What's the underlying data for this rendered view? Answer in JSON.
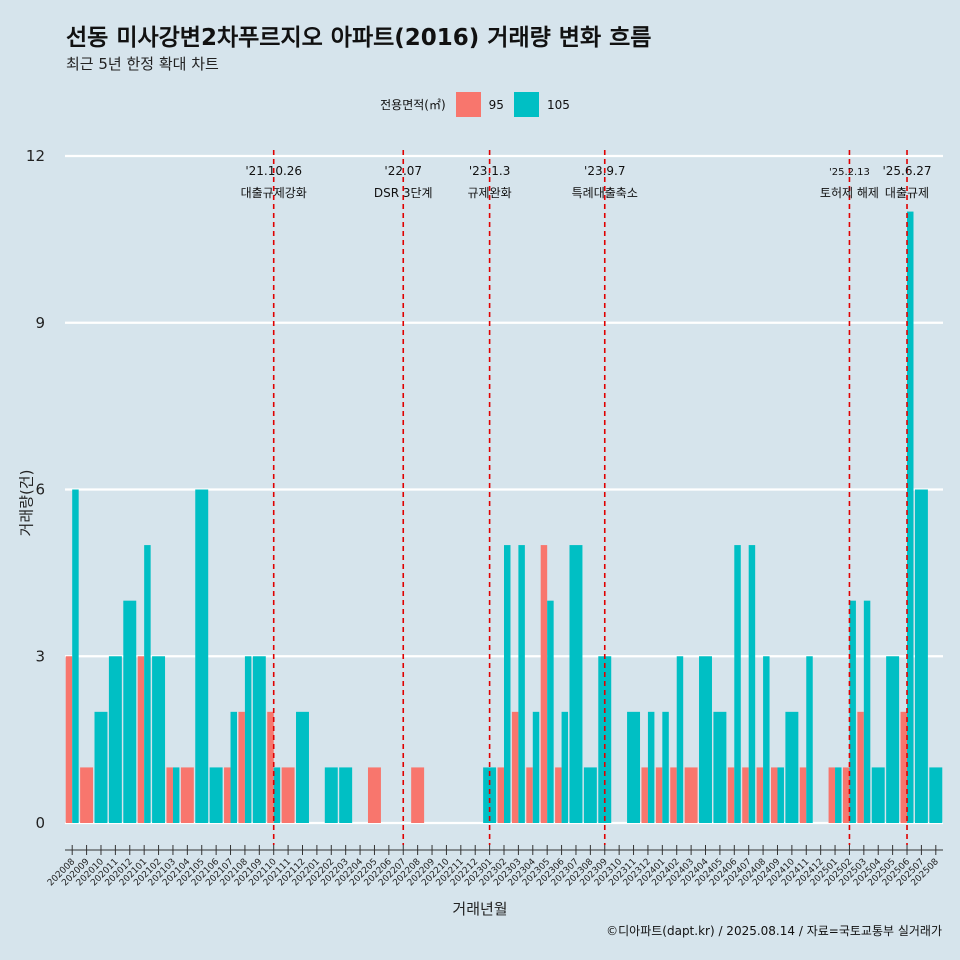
{
  "title": "선동 미사강변2차푸르지오 아파트(2016) 거래량 변화 흐름",
  "subtitle": "최근 5년 한정 확대 차트",
  "caption": "©디아파트(dapt.kr) / 2025.08.14 / 자료=국토교통부 실거래가",
  "legend": {
    "title": "전용면적(㎡)",
    "items": [
      {
        "label": "95",
        "color": "#f8766d"
      },
      {
        "label": "105",
        "color": "#00bfc4"
      }
    ]
  },
  "chart_data": {
    "type": "bar",
    "xlabel": "거래년월",
    "ylabel": "거래량(건)",
    "ylim": [
      0,
      12
    ],
    "yticks": [
      0,
      3,
      6,
      9,
      12
    ],
    "categories": [
      "202008",
      "202009",
      "202010",
      "202011",
      "202012",
      "202101",
      "202102",
      "202103",
      "202104",
      "202105",
      "202106",
      "202107",
      "202108",
      "202109",
      "202110",
      "202111",
      "202112",
      "202201",
      "202202",
      "202203",
      "202204",
      "202205",
      "202206",
      "202207",
      "202208",
      "202209",
      "202210",
      "202211",
      "202212",
      "202301",
      "202302",
      "202303",
      "202304",
      "202305",
      "202306",
      "202307",
      "202308",
      "202309",
      "202310",
      "202311",
      "202312",
      "202401",
      "202402",
      "202403",
      "202404",
      "202405",
      "202406",
      "202407",
      "202408",
      "202409",
      "202410",
      "202411",
      "202412",
      "202501",
      "202502",
      "202503",
      "202504",
      "202505",
      "202506",
      "202507",
      "202508"
    ],
    "series": [
      {
        "name": "95",
        "color": "#f8766d",
        "values": [
          3,
          1,
          0,
          0,
          0,
          3,
          0,
          1,
          1,
          0,
          0,
          1,
          2,
          0,
          2,
          1,
          0,
          0,
          0,
          0,
          0,
          1,
          0,
          0,
          1,
          0,
          0,
          0,
          0,
          0,
          1,
          2,
          1,
          5,
          1,
          0,
          0,
          0,
          0,
          0,
          1,
          1,
          1,
          1,
          0,
          0,
          1,
          1,
          1,
          1,
          0,
          1,
          0,
          1,
          1,
          2,
          0,
          0,
          2,
          0,
          0
        ]
      },
      {
        "name": "105",
        "color": "#00bfc4",
        "values": [
          6,
          0,
          2,
          3,
          4,
          5,
          3,
          1,
          0,
          6,
          1,
          2,
          3,
          3,
          1,
          0,
          2,
          0,
          1,
          1,
          0,
          0,
          0,
          0,
          0,
          0,
          0,
          0,
          0,
          1,
          5,
          5,
          2,
          4,
          2,
          5,
          1,
          3,
          0,
          2,
          2,
          2,
          3,
          0,
          3,
          2,
          5,
          5,
          3,
          1,
          2,
          3,
          0,
          1,
          4,
          4,
          1,
          3,
          11,
          6,
          1
        ]
      }
    ],
    "annotations": [
      {
        "x": "202110",
        "date": "'21.10.26",
        "label": "대출규제강화"
      },
      {
        "x": "202207",
        "date": "'22.07",
        "label": "DSR 3단계"
      },
      {
        "x": "202301",
        "date": "'23.1.3",
        "label": "규제완화"
      },
      {
        "x": "202309",
        "date": "'23.9.7",
        "label": "특례대출축소"
      },
      {
        "x": "202502",
        "date": "'25.2.13",
        "label": "토허제 해제"
      },
      {
        "x": "202506",
        "date": "'25.6.27",
        "label": "대출규제"
      }
    ],
    "grid": true,
    "legend_position": "top"
  }
}
